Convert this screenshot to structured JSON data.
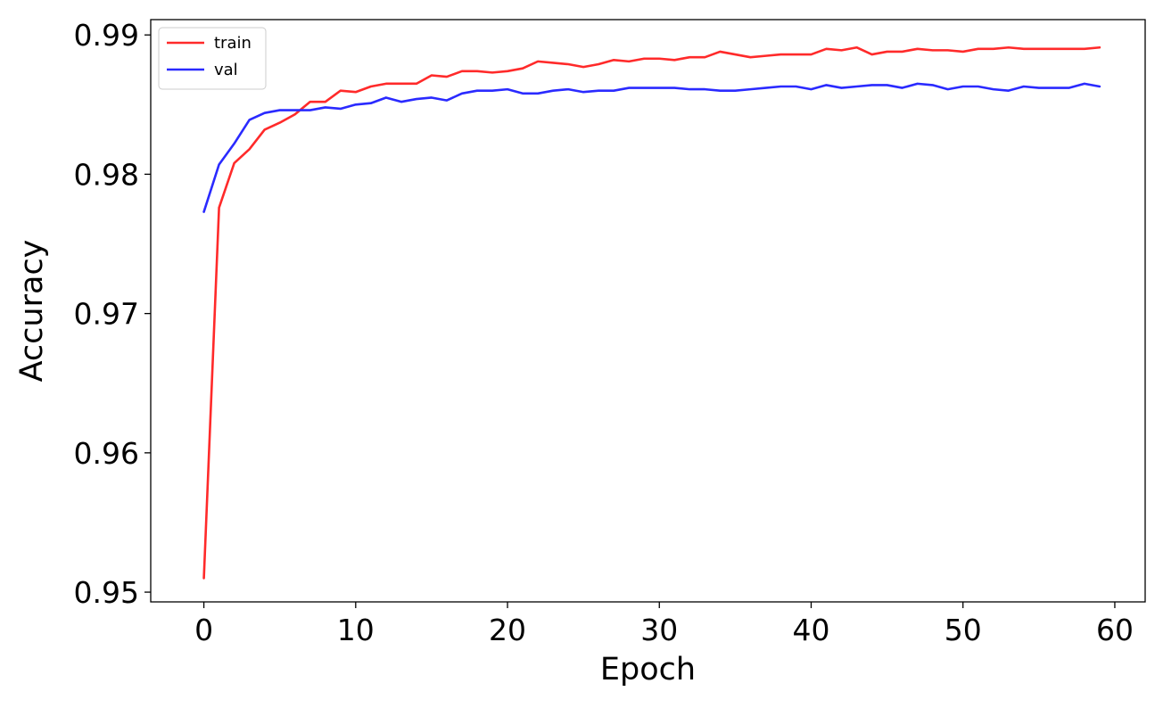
{
  "chart_data": {
    "type": "line",
    "title": "",
    "xlabel": "Epoch",
    "ylabel": "Accuracy",
    "xlim": [
      -3.5,
      62
    ],
    "ylim": [
      0.9493,
      0.9911
    ],
    "xticks": [
      0,
      10,
      20,
      30,
      40,
      50,
      60
    ],
    "yticks": [
      0.95,
      0.96,
      0.97,
      0.98,
      0.99
    ],
    "xtick_labels": [
      "0",
      "10",
      "20",
      "30",
      "40",
      "50",
      "60"
    ],
    "ytick_labels": [
      "0.95",
      "0.96",
      "0.97",
      "0.98",
      "0.99"
    ],
    "grid": false,
    "legend_position": "top-left",
    "x": [
      0,
      1,
      2,
      3,
      4,
      5,
      6,
      7,
      8,
      9,
      10,
      11,
      12,
      13,
      14,
      15,
      16,
      17,
      18,
      19,
      20,
      21,
      22,
      23,
      24,
      25,
      26,
      27,
      28,
      29,
      30,
      31,
      32,
      33,
      34,
      35,
      36,
      37,
      38,
      39,
      40,
      41,
      42,
      43,
      44,
      45,
      46,
      47,
      48,
      49,
      50,
      51,
      52,
      53,
      54,
      55,
      56,
      57,
      58,
      59
    ],
    "series": [
      {
        "name": "train",
        "color": "#ff2a2a",
        "values": [
          0.951,
          0.9776,
          0.9808,
          0.9818,
          0.9832,
          0.9837,
          0.9843,
          0.9852,
          0.9852,
          0.986,
          0.9859,
          0.9863,
          0.9865,
          0.9865,
          0.9865,
          0.9871,
          0.987,
          0.9874,
          0.9874,
          0.9873,
          0.9874,
          0.9876,
          0.9881,
          0.988,
          0.9879,
          0.9877,
          0.9879,
          0.9882,
          0.9881,
          0.9883,
          0.9883,
          0.9882,
          0.9884,
          0.9884,
          0.9888,
          0.9886,
          0.9884,
          0.9885,
          0.9886,
          0.9886,
          0.9886,
          0.989,
          0.9889,
          0.9891,
          0.9886,
          0.9888,
          0.9888,
          0.989,
          0.9889,
          0.9889,
          0.9888,
          0.989,
          0.989,
          0.9891,
          0.989,
          0.989,
          0.989,
          0.989,
          0.989,
          0.9891
        ]
      },
      {
        "name": "val",
        "color": "#2a2aff",
        "values": [
          0.9773,
          0.9807,
          0.9822,
          0.9839,
          0.9844,
          0.9846,
          0.9846,
          0.9846,
          0.9848,
          0.9847,
          0.985,
          0.9851,
          0.9855,
          0.9852,
          0.9854,
          0.9855,
          0.9853,
          0.9858,
          0.986,
          0.986,
          0.9861,
          0.9858,
          0.9858,
          0.986,
          0.9861,
          0.9859,
          0.986,
          0.986,
          0.9862,
          0.9862,
          0.9862,
          0.9862,
          0.9861,
          0.9861,
          0.986,
          0.986,
          0.9861,
          0.9862,
          0.9863,
          0.9863,
          0.9861,
          0.9864,
          0.9862,
          0.9863,
          0.9864,
          0.9864,
          0.9862,
          0.9865,
          0.9864,
          0.9861,
          0.9863,
          0.9863,
          0.9861,
          0.986,
          0.9863,
          0.9862,
          0.9862,
          0.9862,
          0.9865,
          0.9863
        ]
      }
    ]
  }
}
